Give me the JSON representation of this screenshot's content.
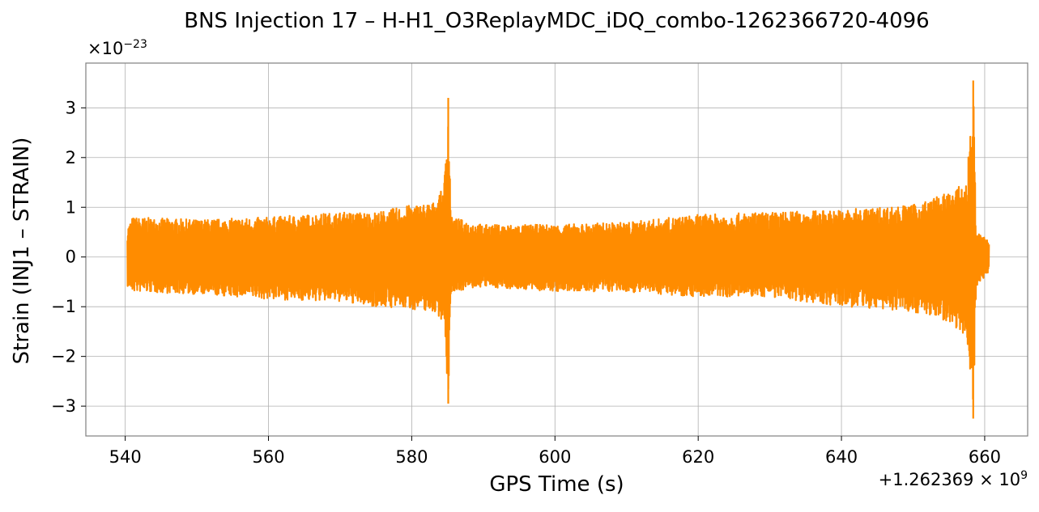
{
  "chart_data": {
    "type": "line",
    "title": "BNS Injection 17 – H-H1_O3ReplayMDC_iDQ_combo-1262366720-4096",
    "xlabel": "GPS Time (s)",
    "ylabel": "Strain (INJ1 – STRAIN)",
    "y_multiplier_base": "×10",
    "y_multiplier_exp": "−23",
    "x_offset_base": "+1.262369 × 10",
    "x_offset_exp": "9",
    "xlim": [
      534.5,
      666
    ],
    "ylim": [
      -3.6,
      3.9
    ],
    "xticks": [
      540,
      560,
      580,
      600,
      620,
      640,
      660
    ],
    "xtick_labels": [
      "540",
      "560",
      "580",
      "600",
      "620",
      "640",
      "660"
    ],
    "yticks": [
      -3,
      -2,
      -1,
      0,
      1,
      2,
      3
    ],
    "ytick_labels": [
      "−3",
      "−2",
      "−1",
      "0",
      "1",
      "2",
      "3"
    ],
    "grid": true,
    "series": [
      {
        "color": "#ff8c00",
        "x_start": 540.3,
        "x_end": 660.6,
        "envelope": [
          {
            "x": 540.3,
            "upper": 0.6,
            "lower": -0.6
          },
          {
            "x": 541,
            "upper": 0.8,
            "lower": -0.7
          },
          {
            "x": 550,
            "upper": 0.75,
            "lower": -0.75
          },
          {
            "x": 560,
            "upper": 0.8,
            "lower": -0.85
          },
          {
            "x": 570,
            "upper": 0.9,
            "lower": -0.9
          },
          {
            "x": 575,
            "upper": 0.9,
            "lower": -1.0
          },
          {
            "x": 580,
            "upper": 1.05,
            "lower": -1.05
          },
          {
            "x": 583,
            "upper": 1.1,
            "lower": -1.1
          },
          {
            "x": 584.5,
            "upper": 1.4,
            "lower": -1.3
          },
          {
            "x": 585.1,
            "upper": 3.2,
            "lower": -2.95
          },
          {
            "x": 585.5,
            "upper": 0.8,
            "lower": -0.7
          },
          {
            "x": 590,
            "upper": 0.65,
            "lower": -0.6
          },
          {
            "x": 600,
            "upper": 0.65,
            "lower": -0.7
          },
          {
            "x": 610,
            "upper": 0.7,
            "lower": -0.7
          },
          {
            "x": 620,
            "upper": 0.85,
            "lower": -0.8
          },
          {
            "x": 630,
            "upper": 0.9,
            "lower": -0.8
          },
          {
            "x": 640,
            "upper": 0.95,
            "lower": -1.0
          },
          {
            "x": 650,
            "upper": 1.05,
            "lower": -1.1
          },
          {
            "x": 655,
            "upper": 1.3,
            "lower": -1.3
          },
          {
            "x": 657.5,
            "upper": 1.5,
            "lower": -1.6
          },
          {
            "x": 658.4,
            "upper": 3.55,
            "lower": -3.25
          },
          {
            "x": 658.8,
            "upper": 0.5,
            "lower": -0.6
          },
          {
            "x": 660.6,
            "upper": 0.35,
            "lower": -0.3
          }
        ]
      }
    ]
  }
}
